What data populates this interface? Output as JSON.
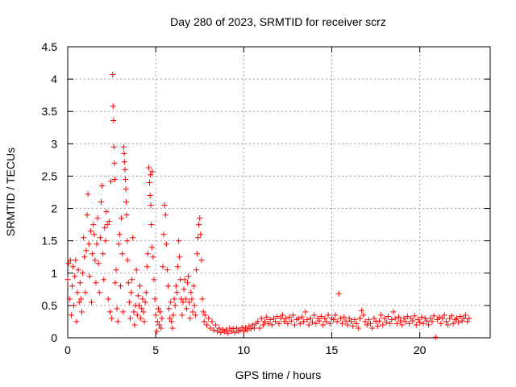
{
  "chart_data": {
    "type": "scatter",
    "title": "Day 280 of 2023, SRMTID for receiver scrz",
    "xlabel": "GPS time / hours",
    "ylabel": "SRMTID / TECUs",
    "xlim": [
      0,
      24
    ],
    "ylim": [
      0,
      4.5
    ],
    "x_ticks": [
      0,
      5,
      10,
      15,
      20
    ],
    "x_tick_labels": [
      "0",
      "5",
      "10",
      "15",
      "20"
    ],
    "y_ticks": [
      0,
      0.5,
      1,
      1.5,
      2,
      2.5,
      3,
      3.5,
      4,
      4.5
    ],
    "y_tick_labels": [
      "0",
      "0.5",
      "1",
      "1.5",
      "2",
      "2.5",
      "3",
      "3.5",
      "4",
      "4.5"
    ],
    "grid": true,
    "marker": "+",
    "series": [
      {
        "name": "SRMTID",
        "color": "#ff0000",
        "points": [
          [
            0.0,
            0.9
          ],
          [
            0.05,
            1.15
          ],
          [
            0.1,
            0.6
          ],
          [
            0.15,
            1.2
          ],
          [
            0.2,
            0.35
          ],
          [
            0.25,
            0.8
          ],
          [
            0.3,
            1.1
          ],
          [
            0.35,
            0.5
          ],
          [
            0.4,
            0.95
          ],
          [
            0.45,
            1.2
          ],
          [
            0.5,
            0.25
          ],
          [
            0.55,
            0.7
          ],
          [
            0.6,
            1.05
          ],
          [
            0.65,
            0.55
          ],
          [
            0.7,
            0.85
          ],
          [
            0.75,
            0.6
          ],
          [
            0.8,
            0.4
          ],
          [
            0.85,
            1.0
          ],
          [
            0.9,
            1.55
          ],
          [
            0.95,
            1.25
          ],
          [
            1.0,
            0.7
          ],
          [
            1.05,
            1.35
          ],
          [
            1.1,
            1.9
          ],
          [
            1.15,
            2.22
          ],
          [
            1.2,
            1.45
          ],
          [
            1.25,
            0.95
          ],
          [
            1.3,
            1.65
          ],
          [
            1.35,
            0.55
          ],
          [
            1.4,
            1.3
          ],
          [
            1.45,
            1.75
          ],
          [
            1.5,
            1.6
          ],
          [
            1.55,
            1.2
          ],
          [
            1.6,
            0.85
          ],
          [
            1.65,
            1.45
          ],
          [
            1.7,
            1.85
          ],
          [
            1.75,
            1.15
          ],
          [
            1.8,
            0.7
          ],
          [
            1.85,
            1.55
          ],
          [
            1.9,
            2.1
          ],
          [
            1.95,
            2.35
          ],
          [
            2.0,
            1.3
          ],
          [
            2.05,
            0.9
          ],
          [
            2.1,
            1.7
          ],
          [
            2.15,
            1.5
          ],
          [
            2.2,
            1.95
          ],
          [
            2.25,
            1.75
          ],
          [
            2.3,
            0.6
          ],
          [
            2.35,
            1.8
          ],
          [
            2.4,
            0.4
          ],
          [
            2.45,
            2.42
          ],
          [
            2.5,
            0.3
          ],
          [
            2.55,
            4.07
          ],
          [
            2.58,
            3.58
          ],
          [
            2.6,
            3.36
          ],
          [
            2.62,
            2.95
          ],
          [
            2.65,
            2.7
          ],
          [
            2.68,
            2.45
          ],
          [
            2.7,
            0.85
          ],
          [
            2.75,
            1.05
          ],
          [
            2.8,
            0.45
          ],
          [
            2.85,
            0.25
          ],
          [
            2.9,
            1.45
          ],
          [
            2.95,
            1.6
          ],
          [
            3.0,
            0.8
          ],
          [
            3.05,
            1.85
          ],
          [
            3.1,
            1.3
          ],
          [
            3.15,
            0.4
          ],
          [
            3.18,
            2.95
          ],
          [
            3.2,
            2.85
          ],
          [
            3.22,
            2.72
          ],
          [
            3.25,
            2.6
          ],
          [
            3.28,
            2.45
          ],
          [
            3.3,
            2.3
          ],
          [
            3.32,
            2.1
          ],
          [
            3.35,
            1.9
          ],
          [
            3.38,
            1.5
          ],
          [
            3.4,
            1.2
          ],
          [
            3.45,
            0.85
          ],
          [
            3.5,
            0.55
          ],
          [
            3.55,
            0.3
          ],
          [
            3.6,
            0.7
          ],
          [
            3.65,
            0.9
          ],
          [
            3.7,
            1.55
          ],
          [
            3.75,
            0.4
          ],
          [
            3.8,
            0.2
          ],
          [
            3.85,
            0.5
          ],
          [
            3.9,
            1.05
          ],
          [
            3.95,
            0.35
          ],
          [
            4.0,
            0.65
          ],
          [
            4.05,
            0.5
          ],
          [
            4.1,
            0.8
          ],
          [
            4.15,
            0.3
          ],
          [
            4.2,
            0.45
          ],
          [
            4.25,
            0.6
          ],
          [
            4.3,
            0.4
          ],
          [
            4.35,
            0.25
          ],
          [
            4.4,
            0.55
          ],
          [
            4.45,
            0.7
          ],
          [
            4.5,
            1.1
          ],
          [
            4.55,
            1.3
          ],
          [
            4.6,
            2.63
          ],
          [
            4.65,
            2.4
          ],
          [
            4.68,
            2.2
          ],
          [
            4.7,
            2.52
          ],
          [
            4.72,
            2.05
          ],
          [
            4.75,
            1.75
          ],
          [
            4.78,
            1.4
          ],
          [
            4.8,
            2.57
          ],
          [
            4.85,
            1.25
          ],
          [
            4.9,
            0.9
          ],
          [
            4.95,
            0.6
          ],
          [
            5.0,
            0.35
          ],
          [
            5.05,
            0.1
          ],
          [
            5.1,
            0.25
          ],
          [
            5.15,
            0.45
          ],
          [
            5.2,
            0.2
          ],
          [
            5.25,
            0.4
          ],
          [
            5.3,
            0.15
          ],
          [
            5.35,
            0.3
          ],
          [
            5.4,
            1.1
          ],
          [
            5.45,
            1.6
          ],
          [
            5.5,
            2.05
          ],
          [
            5.55,
            1.9
          ],
          [
            5.6,
            1.45
          ],
          [
            5.65,
            1.05
          ],
          [
            5.7,
            0.8
          ],
          [
            5.75,
            0.45
          ],
          [
            5.8,
            0.3
          ],
          [
            5.85,
            0.55
          ],
          [
            5.9,
            0.25
          ],
          [
            5.95,
            0.15
          ],
          [
            6.0,
            0.35
          ],
          [
            6.05,
            0.6
          ],
          [
            6.1,
            0.5
          ],
          [
            6.15,
            0.8
          ],
          [
            6.2,
            0.7
          ],
          [
            6.25,
            1.1
          ],
          [
            6.3,
            1.5
          ],
          [
            6.35,
            1.25
          ],
          [
            6.4,
            0.9
          ],
          [
            6.45,
            0.6
          ],
          [
            6.5,
            0.35
          ],
          [
            6.55,
            0.55
          ],
          [
            6.6,
            0.75
          ],
          [
            6.65,
            0.9
          ],
          [
            6.7,
            0.6
          ],
          [
            6.75,
            0.45
          ],
          [
            6.8,
            0.85
          ],
          [
            6.85,
            0.95
          ],
          [
            6.9,
            0.55
          ],
          [
            6.95,
            0.3
          ],
          [
            7.0,
            0.7
          ],
          [
            7.05,
            0.6
          ],
          [
            7.1,
            0.4
          ],
          [
            7.15,
            0.8
          ],
          [
            7.2,
            0.5
          ],
          [
            7.25,
            0.35
          ],
          [
            7.3,
            1.05
          ],
          [
            7.35,
            1.3
          ],
          [
            7.4,
            1.55
          ],
          [
            7.45,
            1.75
          ],
          [
            7.5,
            1.85
          ],
          [
            7.55,
            1.6
          ],
          [
            7.6,
            1.2
          ],
          [
            7.65,
            0.6
          ],
          [
            7.7,
            0.4
          ],
          [
            7.75,
            0.25
          ],
          [
            7.8,
            0.35
          ],
          [
            7.9,
            0.2
          ],
          [
            8.0,
            0.3
          ],
          [
            8.1,
            0.15
          ],
          [
            8.2,
            0.25
          ],
          [
            8.3,
            0.12
          ],
          [
            8.4,
            0.2
          ],
          [
            8.5,
            0.1
          ],
          [
            8.6,
            0.15
          ],
          [
            8.7,
            0.08
          ],
          [
            8.8,
            0.13
          ],
          [
            8.9,
            0.1
          ],
          [
            9.0,
            0.12
          ],
          [
            9.1,
            0.07
          ],
          [
            9.2,
            0.15
          ],
          [
            9.3,
            0.1
          ],
          [
            9.4,
            0.14
          ],
          [
            9.5,
            0.08
          ],
          [
            9.6,
            0.15
          ],
          [
            9.7,
            0.1
          ],
          [
            9.8,
            0.12
          ],
          [
            9.9,
            0.16
          ],
          [
            10.0,
            0.1
          ],
          [
            10.1,
            0.15
          ],
          [
            10.2,
            0.12
          ],
          [
            10.3,
            0.18
          ],
          [
            10.4,
            0.14
          ],
          [
            10.5,
            0.2
          ],
          [
            10.6,
            0.15
          ],
          [
            10.7,
            0.22
          ],
          [
            10.8,
            0.25
          ],
          [
            10.9,
            0.15
          ],
          [
            11.0,
            0.3
          ],
          [
            11.1,
            0.2
          ],
          [
            11.2,
            0.25
          ],
          [
            11.3,
            0.32
          ],
          [
            11.4,
            0.22
          ],
          [
            11.5,
            0.28
          ],
          [
            11.6,
            0.2
          ],
          [
            11.7,
            0.3
          ],
          [
            11.8,
            0.25
          ],
          [
            11.9,
            0.33
          ],
          [
            12.0,
            0.22
          ],
          [
            12.1,
            0.3
          ],
          [
            12.2,
            0.35
          ],
          [
            12.3,
            0.25
          ],
          [
            12.4,
            0.3
          ],
          [
            12.5,
            0.22
          ],
          [
            12.6,
            0.32
          ],
          [
            12.7,
            0.26
          ],
          [
            12.8,
            0.35
          ],
          [
            12.9,
            0.2
          ],
          [
            13.0,
            0.28
          ],
          [
            13.1,
            0.3
          ],
          [
            13.2,
            0.22
          ],
          [
            13.3,
            0.32
          ],
          [
            13.4,
            0.25
          ],
          [
            13.5,
            0.4
          ],
          [
            13.6,
            0.28
          ],
          [
            13.7,
            0.2
          ],
          [
            13.8,
            0.3
          ],
          [
            13.9,
            0.24
          ],
          [
            14.0,
            0.35
          ],
          [
            14.1,
            0.22
          ],
          [
            14.2,
            0.3
          ],
          [
            14.3,
            0.26
          ],
          [
            14.4,
            0.33
          ],
          [
            14.5,
            0.2
          ],
          [
            14.6,
            0.3
          ],
          [
            14.7,
            0.25
          ],
          [
            14.8,
            0.35
          ],
          [
            14.9,
            0.22
          ],
          [
            15.0,
            0.3
          ],
          [
            15.1,
            0.28
          ],
          [
            15.2,
            0.35
          ],
          [
            15.3,
            0.25
          ],
          [
            15.4,
            0.68
          ],
          [
            15.5,
            0.3
          ],
          [
            15.6,
            0.22
          ],
          [
            15.7,
            0.32
          ],
          [
            15.8,
            0.26
          ],
          [
            15.9,
            0.2
          ],
          [
            16.0,
            0.3
          ],
          [
            16.1,
            0.25
          ],
          [
            16.2,
            0.18
          ],
          [
            16.3,
            0.28
          ],
          [
            16.4,
            0.22
          ],
          [
            16.5,
            0.15
          ],
          [
            16.6,
            0.3
          ],
          [
            16.7,
            0.42
          ],
          [
            16.8,
            0.35
          ],
          [
            16.9,
            0.25
          ],
          [
            17.0,
            0.2
          ],
          [
            17.1,
            0.28
          ],
          [
            17.2,
            0.22
          ],
          [
            17.3,
            0.15
          ],
          [
            17.4,
            0.3
          ],
          [
            17.5,
            0.25
          ],
          [
            17.6,
            0.18
          ],
          [
            17.7,
            0.26
          ],
          [
            17.8,
            0.35
          ],
          [
            17.9,
            0.2
          ],
          [
            18.0,
            0.3
          ],
          [
            18.1,
            0.24
          ],
          [
            18.2,
            0.33
          ],
          [
            18.3,
            0.22
          ],
          [
            18.4,
            0.28
          ],
          [
            18.5,
            0.4
          ],
          [
            18.6,
            0.3
          ],
          [
            18.7,
            0.22
          ],
          [
            18.8,
            0.32
          ],
          [
            18.9,
            0.26
          ],
          [
            19.0,
            0.2
          ],
          [
            19.1,
            0.3
          ],
          [
            19.2,
            0.25
          ],
          [
            19.3,
            0.33
          ],
          [
            19.4,
            0.22
          ],
          [
            19.5,
            0.3
          ],
          [
            19.6,
            0.26
          ],
          [
            19.7,
            0.34
          ],
          [
            19.8,
            0.2
          ],
          [
            19.9,
            0.28
          ],
          [
            20.0,
            0.24
          ],
          [
            20.1,
            0.32
          ],
          [
            20.2,
            0.22
          ],
          [
            20.3,
            0.3
          ],
          [
            20.4,
            0.26
          ],
          [
            20.5,
            0.2
          ],
          [
            20.6,
            0.3
          ],
          [
            20.7,
            0.25
          ],
          [
            20.8,
            0.34
          ],
          [
            20.9,
            0.01
          ],
          [
            21.0,
            0.28
          ],
          [
            21.1,
            0.32
          ],
          [
            21.2,
            0.22
          ],
          [
            21.3,
            0.3
          ],
          [
            21.4,
            0.35
          ],
          [
            21.5,
            0.25
          ],
          [
            21.6,
            0.2
          ],
          [
            21.7,
            0.3
          ],
          [
            21.8,
            0.34
          ],
          [
            21.9,
            0.22
          ],
          [
            22.0,
            0.28
          ],
          [
            22.1,
            0.3
          ],
          [
            22.2,
            0.24
          ],
          [
            22.3,
            0.33
          ],
          [
            22.4,
            0.26
          ],
          [
            22.5,
            0.3
          ],
          [
            22.6,
            0.35
          ],
          [
            22.7,
            0.25
          ],
          [
            22.8,
            0.3
          ]
        ]
      }
    ]
  }
}
